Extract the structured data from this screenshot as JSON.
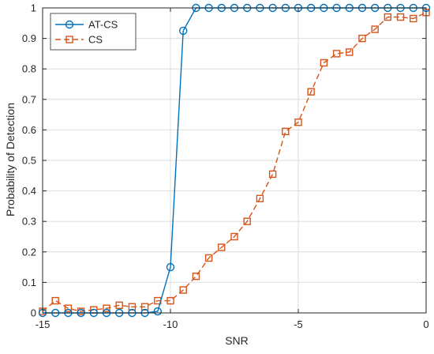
{
  "chart_data": {
    "type": "line",
    "xlabel": "SNR",
    "ylabel": "Probability of Detection",
    "xlim": [
      -15,
      0
    ],
    "ylim": [
      0,
      1
    ],
    "grid": true,
    "legend_position": "top-left",
    "x_ticks": [
      -15,
      -10,
      -5,
      0
    ],
    "y_ticks": [
      0,
      0.1,
      0.2,
      0.3,
      0.4,
      0.5,
      0.6,
      0.7,
      0.8,
      0.9,
      1
    ],
    "x_tick_labels": [
      "-15",
      "-10",
      "-5",
      "0"
    ],
    "y_tick_labels": [
      "0",
      "0.1",
      "0.2",
      "0.3",
      "0.4",
      "0.5",
      "0.6",
      "0.7",
      "0.8",
      "0.9",
      "1"
    ],
    "series": [
      {
        "name": "AT-CS",
        "color": "#0072BD",
        "marker": "circle",
        "line_style": "solid",
        "x": [
          -15,
          -14.5,
          -14,
          -13.5,
          -13,
          -12.5,
          -12,
          -11.5,
          -11,
          -10.5,
          -10,
          -9.5,
          -9,
          -8.5,
          -8,
          -7.5,
          -7,
          -6.5,
          -6,
          -5.5,
          -5,
          -4.5,
          -4,
          -3.5,
          -3,
          -2.5,
          -2,
          -1.5,
          -1,
          -0.5,
          0
        ],
        "values": [
          0,
          0,
          0,
          0,
          0,
          0,
          0,
          0,
          0,
          0.005,
          0.15,
          0.925,
          1,
          1,
          1,
          1,
          1,
          1,
          1,
          1,
          1,
          1,
          1,
          1,
          1,
          1,
          1,
          1,
          1,
          1,
          1
        ]
      },
      {
        "name": "CS",
        "color": "#D95319",
        "marker": "square",
        "line_style": "dashed",
        "x": [
          -15,
          -14.5,
          -14,
          -13.5,
          -13,
          -12.5,
          -12,
          -11.5,
          -11,
          -10.5,
          -10,
          -9.5,
          -9,
          -8.5,
          -8,
          -7.5,
          -7,
          -6.5,
          -6,
          -5.5,
          -5,
          -4.5,
          -4,
          -3.5,
          -3,
          -2.5,
          -2,
          -1.5,
          -1,
          -0.5,
          0
        ],
        "values": [
          0.005,
          0.04,
          0.015,
          0.005,
          0.01,
          0.015,
          0.025,
          0.02,
          0.02,
          0.04,
          0.04,
          0.075,
          0.12,
          0.18,
          0.215,
          0.25,
          0.3,
          0.375,
          0.455,
          0.595,
          0.625,
          0.725,
          0.82,
          0.85,
          0.855,
          0.9,
          0.93,
          0.97,
          0.97,
          0.965,
          0.985
        ]
      }
    ]
  }
}
